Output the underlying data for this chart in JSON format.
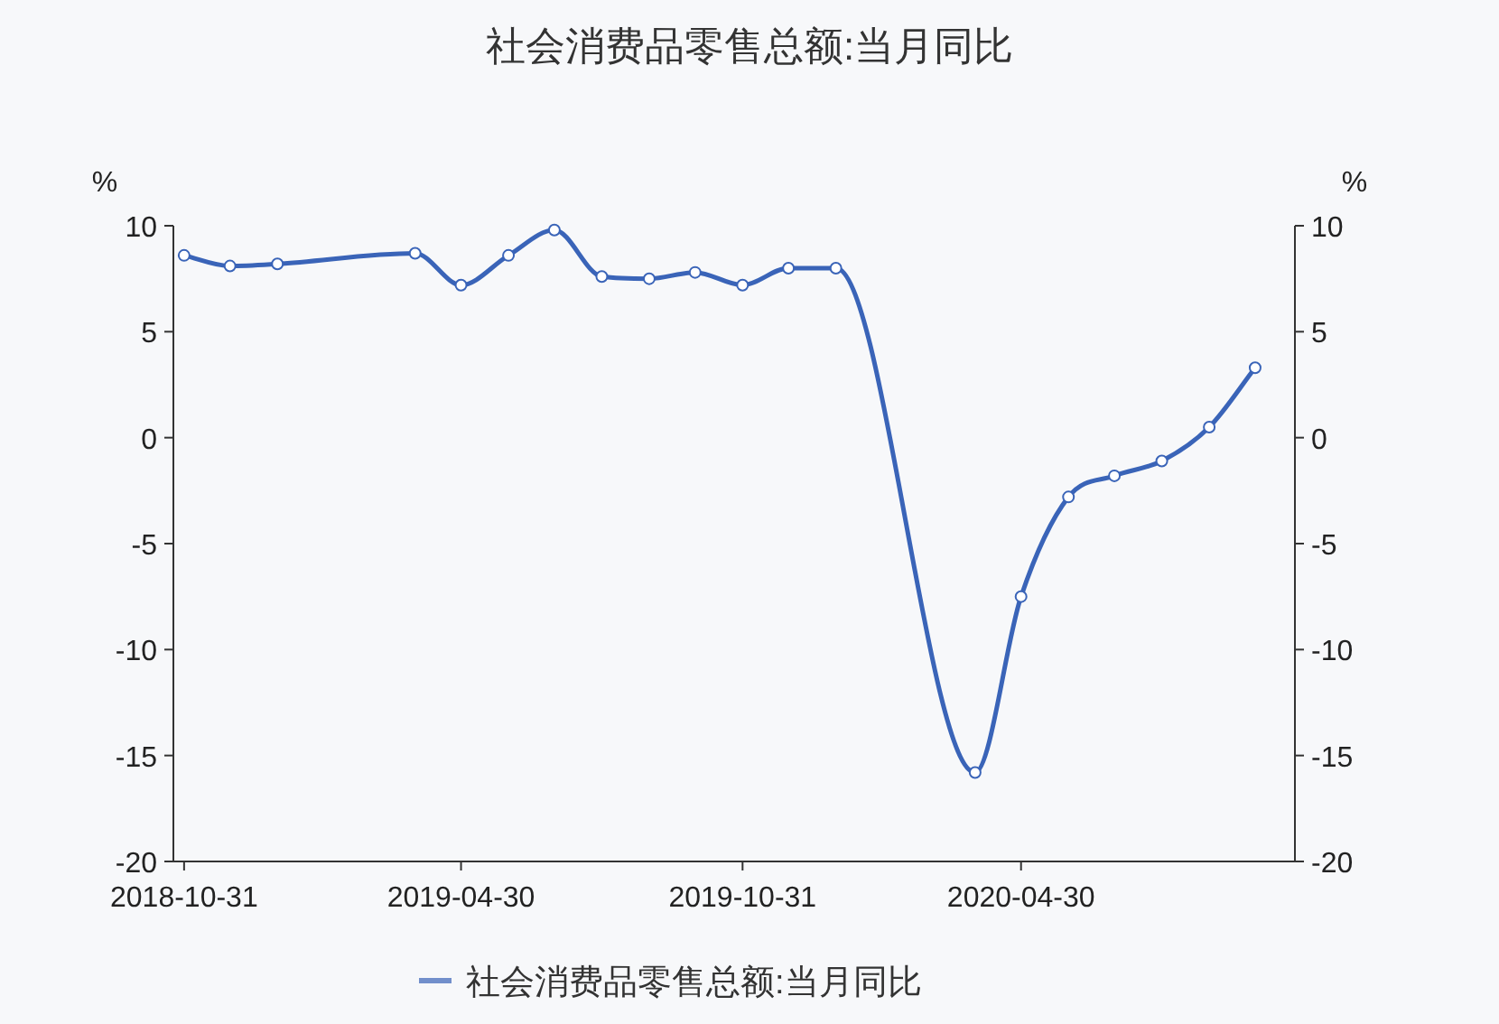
{
  "chart_data": {
    "type": "line",
    "title": "社会消费品零售总额:当月同比",
    "x": [
      "2018-10-31",
      "2018-11-30",
      "2018-12-31",
      "2019-03-31",
      "2019-04-30",
      "2019-05-31",
      "2019-06-30",
      "2019-07-31",
      "2019-08-31",
      "2019-09-30",
      "2019-10-31",
      "2019-11-30",
      "2019-12-31",
      "2020-03-31",
      "2020-04-30",
      "2020-05-31",
      "2020-06-30",
      "2020-07-31",
      "2020-08-31",
      "2020-09-30"
    ],
    "series": [
      {
        "name": "社会消费品零售总额:当月同比",
        "color": "#3a64b8",
        "values": [
          8.6,
          8.1,
          8.2,
          8.7,
          7.2,
          8.6,
          9.8,
          7.6,
          7.5,
          7.8,
          7.2,
          8.0,
          8.0,
          -15.8,
          -7.5,
          -2.8,
          -1.8,
          -1.1,
          0.5,
          3.3
        ]
      }
    ],
    "xlim": [
      "2018-10-24",
      "2020-10-26"
    ],
    "xticks": [
      "2018-10-31",
      "2019-04-30",
      "2019-10-31",
      "2020-04-30"
    ],
    "ylim": [
      -20,
      10
    ],
    "yticks": [
      -20,
      -15,
      -10,
      -5,
      0,
      5,
      10
    ],
    "y2lim": [
      -20,
      10
    ],
    "y2ticks": [
      -20,
      -15,
      -10,
      -5,
      0,
      5,
      10
    ],
    "ylabel": "%",
    "y2label": "%",
    "marker": "circle",
    "line_style": "solid",
    "grid": false,
    "legend": "bottom"
  }
}
